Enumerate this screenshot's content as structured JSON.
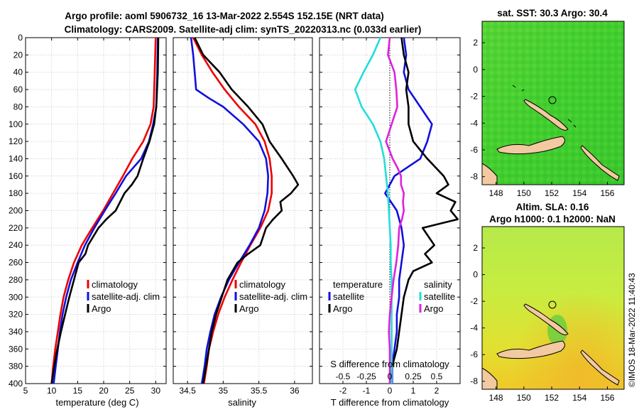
{
  "header": {
    "line1": "Argo profile: aoml 5906732_16 13-Mar-2022 2.554S 152.15E (NRT data)",
    "line2": "Climatology: CARS2009. Satellite-adj clim: synTS_20220313.nc (0.033d earlier)"
  },
  "colors": {
    "climatology": "#ee0000",
    "satellite": "#1010dd",
    "argo": "#000000",
    "s_satellite": "#22dddd",
    "s_argo": "#dd22dd",
    "land": "#f2c9a0"
  },
  "chart_data": [
    {
      "type": "line",
      "id": "temperature",
      "xlabel": "temperature (deg C)",
      "ylabel": "",
      "xlim": [
        5,
        32
      ],
      "ylim": [
        400,
        0
      ],
      "xticks": [
        "5",
        "10",
        "15",
        "20",
        "25",
        "30"
      ],
      "yticks": [
        "0",
        "20",
        "40",
        "60",
        "80",
        "100",
        "120",
        "140",
        "160",
        "180",
        "200",
        "220",
        "240",
        "260",
        "280",
        "300",
        "320",
        "340",
        "360",
        "380",
        "400"
      ],
      "legend": [
        "climatology",
        "satellite-adj. clim",
        "Argo"
      ],
      "series": [
        {
          "name": "climatology",
          "depth": [
            0,
            40,
            80,
            100,
            120,
            140,
            160,
            180,
            200,
            220,
            240,
            260,
            280,
            300,
            320,
            340,
            360,
            380,
            400
          ],
          "values": [
            30.0,
            29.8,
            29.6,
            29.0,
            27.6,
            25.5,
            23.7,
            21.8,
            19.9,
            17.8,
            15.8,
            14.3,
            13.2,
            12.3,
            11.7,
            11.2,
            10.7,
            10.3,
            10.0
          ]
        },
        {
          "name": "satellite-adj. clim",
          "depth": [
            0,
            40,
            80,
            100,
            120,
            140,
            160,
            180,
            200,
            220,
            240,
            260,
            280,
            300,
            320,
            340,
            360,
            380,
            400
          ],
          "values": [
            30.4,
            30.3,
            30.1,
            29.5,
            28.7,
            27.2,
            24.3,
            22.3,
            20.2,
            18.2,
            16.4,
            15.0,
            13.7,
            12.8,
            12.1,
            11.6,
            11.2,
            10.8,
            10.4
          ]
        },
        {
          "name": "Argo",
          "depth": [
            0,
            40,
            80,
            100,
            120,
            140,
            160,
            170,
            180,
            200,
            210,
            220,
            240,
            250,
            260,
            280,
            300,
            320,
            340,
            360,
            380,
            400
          ],
          "values": [
            30.5,
            30.4,
            30.1,
            29.7,
            28.8,
            27.6,
            26.5,
            25.4,
            24.0,
            22.3,
            20.5,
            19.0,
            17.0,
            16.5,
            15.2,
            14.3,
            13.4,
            12.6,
            11.8,
            11.1,
            10.5,
            10.0
          ]
        }
      ]
    },
    {
      "type": "line",
      "id": "salinity",
      "xlabel": "salinity",
      "ylabel": "",
      "xlim": [
        34.3,
        36.25
      ],
      "ylim": [
        400,
        0
      ],
      "xticks": [
        "34.5",
        "35",
        "35.5",
        "36"
      ],
      "legend": [
        "climatology",
        "satellite-adj. clim",
        "Argo"
      ],
      "series": [
        {
          "name": "climatology",
          "depth": [
            0,
            20,
            40,
            60,
            80,
            100,
            120,
            140,
            160,
            180,
            200,
            220,
            240,
            260,
            280,
            300,
            320,
            340,
            360,
            380,
            400
          ],
          "values": [
            34.58,
            34.7,
            34.85,
            35.02,
            35.22,
            35.45,
            35.58,
            35.65,
            35.68,
            35.68,
            35.63,
            35.52,
            35.38,
            35.25,
            35.13,
            35.02,
            34.93,
            34.86,
            34.8,
            34.77,
            34.73
          ]
        },
        {
          "name": "satellite-adj. clim",
          "depth": [
            0,
            20,
            40,
            60,
            70,
            80,
            100,
            120,
            140,
            160,
            180,
            200,
            220,
            240,
            260,
            280,
            300,
            320,
            340,
            360,
            380,
            400
          ],
          "values": [
            34.55,
            34.58,
            34.6,
            34.62,
            34.8,
            35.0,
            35.28,
            35.5,
            35.6,
            35.63,
            35.62,
            35.58,
            35.5,
            35.37,
            35.22,
            35.08,
            34.97,
            34.88,
            34.82,
            34.77,
            34.74,
            34.7
          ]
        },
        {
          "name": "Argo",
          "depth": [
            0,
            20,
            40,
            60,
            80,
            100,
            120,
            140,
            160,
            170,
            180,
            190,
            200,
            210,
            220,
            240,
            250,
            260,
            280,
            300,
            320,
            340,
            360,
            380,
            400
          ],
          "values": [
            34.6,
            34.72,
            34.95,
            35.12,
            35.35,
            35.55,
            35.65,
            35.82,
            35.98,
            36.05,
            35.95,
            35.8,
            35.82,
            35.7,
            35.6,
            35.52,
            35.35,
            35.2,
            35.06,
            34.98,
            34.9,
            34.84,
            34.8,
            34.76,
            34.72
          ]
        }
      ]
    },
    {
      "type": "line",
      "id": "difference",
      "xlabel": "T difference from climatology",
      "xlabel_top": "S difference from climatology",
      "xlim": [
        -3,
        3
      ],
      "ylim": [
        400,
        0
      ],
      "xticks": [
        "-2",
        "-1",
        "0",
        "1",
        "2"
      ],
      "xticks_top": [
        "-0.5",
        "-0.25",
        "0",
        "0.25",
        "0.5"
      ],
      "legend_left_title": "temperature",
      "legend_right_title": "salinity",
      "legend": [
        "satellite",
        "Argo",
        "satellite",
        "Argo"
      ],
      "series": [
        {
          "name": "T satellite",
          "depth": [
            0,
            20,
            40,
            60,
            80,
            100,
            120,
            140,
            160,
            180,
            200,
            220,
            240,
            260,
            280,
            300,
            320,
            340,
            360,
            380,
            400
          ],
          "values": [
            0.6,
            0.7,
            0.6,
            0.8,
            1.3,
            1.8,
            1.6,
            1.3,
            0.2,
            -0.2,
            0.3,
            0.5,
            0.6,
            0.5,
            0.4,
            0.4,
            0.3,
            0.3,
            0.2,
            0.1,
            0.1
          ]
        },
        {
          "name": "T Argo",
          "depth": [
            0,
            20,
            40,
            60,
            80,
            100,
            120,
            140,
            160,
            170,
            180,
            190,
            200,
            210,
            220,
            240,
            250,
            260,
            270,
            280,
            300,
            320,
            340,
            360,
            380,
            400
          ],
          "values": [
            0.5,
            0.6,
            0.8,
            0.7,
            0.8,
            0.8,
            1.0,
            1.6,
            2.3,
            2.5,
            2.0,
            2.8,
            2.6,
            2.9,
            1.4,
            1.9,
            1.5,
            1.8,
            1.0,
            0.8,
            0.6,
            0.5,
            0.4,
            0.3,
            0.1,
            0.0
          ]
        },
        {
          "name": "S satellite",
          "depth": [
            0,
            20,
            40,
            60,
            80,
            100,
            120,
            140,
            160,
            180,
            200,
            220,
            240,
            260,
            280,
            300,
            320,
            340,
            360,
            380,
            400
          ],
          "values": [
            -0.1,
            -0.18,
            -0.28,
            -0.37,
            -0.3,
            -0.18,
            -0.1,
            -0.06,
            -0.04,
            -0.02,
            -0.01,
            0.0,
            0.01,
            0.01,
            0.02,
            0.02,
            0.02,
            0.02,
            0.02,
            0.02,
            0.02
          ]
        },
        {
          "name": "S Argo",
          "depth": [
            0,
            20,
            40,
            60,
            80,
            100,
            120,
            140,
            150,
            160,
            170,
            180,
            190,
            200,
            210,
            220,
            240,
            260,
            280,
            300,
            320,
            340,
            360,
            380,
            400
          ],
          "values": [
            0.0,
            -0.02,
            0.05,
            0.07,
            0.08,
            0.02,
            -0.04,
            0.03,
            0.08,
            0.12,
            0.12,
            0.15,
            0.14,
            0.15,
            0.13,
            0.1,
            0.09,
            0.07,
            0.04,
            0.02,
            0.0,
            -0.01,
            0.0,
            0.0,
            0.0
          ]
        }
      ]
    },
    {
      "type": "heatmap",
      "id": "sst_map",
      "title": "sat. SST: 30.3 Argo: 30.4",
      "xticks": [
        "148",
        "150",
        "152",
        "154",
        "156"
      ],
      "yticks": [
        "2",
        "0",
        "-2",
        "-4",
        "-6",
        "-8"
      ],
      "xlim": [
        147,
        157.2
      ],
      "ylim": [
        -8.6,
        3.6
      ]
    },
    {
      "type": "heatmap",
      "id": "sla_map",
      "title": "Altim. SLA: 0.16",
      "subtitle": "Argo h1000: 0.1 h2000: NaN",
      "xticks": [
        "148",
        "150",
        "152",
        "154",
        "156"
      ],
      "yticks": [
        "2",
        "0",
        "-2",
        "-4",
        "-6",
        "-8"
      ],
      "xlim": [
        147,
        157.2
      ],
      "ylim": [
        -8.6,
        3.6
      ]
    }
  ],
  "footer": {
    "credit": "©IMOS 18-Mar-2022 11:40:43"
  }
}
